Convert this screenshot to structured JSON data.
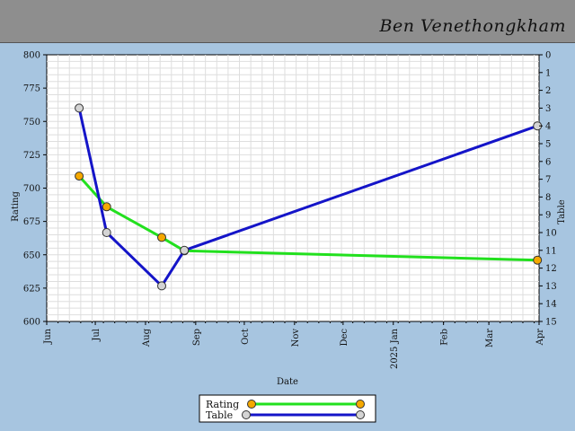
{
  "header": {
    "player_name": "Ben Venethongkham"
  },
  "chart_data": {
    "type": "line",
    "xlabel": "Date",
    "ylabel_left": "Rating",
    "ylabel_right": "Table",
    "x_ticks": [
      "Jun",
      "Jul",
      "Aug",
      "Sep",
      "Oct",
      "Nov",
      "Dec",
      "2025 Jan",
      "Feb",
      "Mar",
      "Apr"
    ],
    "x_tick_dates": [
      "2024-06-01",
      "2024-07-01",
      "2024-08-01",
      "2024-09-01",
      "2024-10-01",
      "2024-11-01",
      "2024-12-01",
      "2025-01-01",
      "2025-02-01",
      "2025-03-01",
      "2025-04-01"
    ],
    "ylim_left": [
      600,
      800
    ],
    "ylim_right": [
      0,
      15
    ],
    "right_axis_inverted": true,
    "left_ticks": [
      600,
      625,
      650,
      675,
      700,
      725,
      750,
      775,
      800
    ],
    "right_ticks": [
      0,
      1,
      2,
      3,
      4,
      5,
      6,
      7,
      8,
      9,
      10,
      11,
      12,
      13,
      14,
      15
    ],
    "grid": true,
    "series": [
      {
        "name": "Rating",
        "axis": "left",
        "line_color": "#22e01e",
        "marker_color": "#f5a800",
        "points": [
          {
            "date": "2024-06-21",
            "value": 709
          },
          {
            "date": "2024-07-08",
            "value": 686
          },
          {
            "date": "2024-08-11",
            "value": 663
          },
          {
            "date": "2024-08-25",
            "value": 653
          },
          {
            "date": "2025-03-31",
            "value": 646
          }
        ]
      },
      {
        "name": "Table",
        "axis": "right",
        "line_color": "#1414c8",
        "marker_color": "#d4d4d4",
        "points": [
          {
            "date": "2024-06-21",
            "value": 3
          },
          {
            "date": "2024-07-08",
            "value": 10
          },
          {
            "date": "2024-08-11",
            "value": 13
          },
          {
            "date": "2024-08-25",
            "value": 11
          },
          {
            "date": "2025-03-31",
            "value": 4
          }
        ]
      }
    ],
    "legend_position": "bottom-center"
  }
}
